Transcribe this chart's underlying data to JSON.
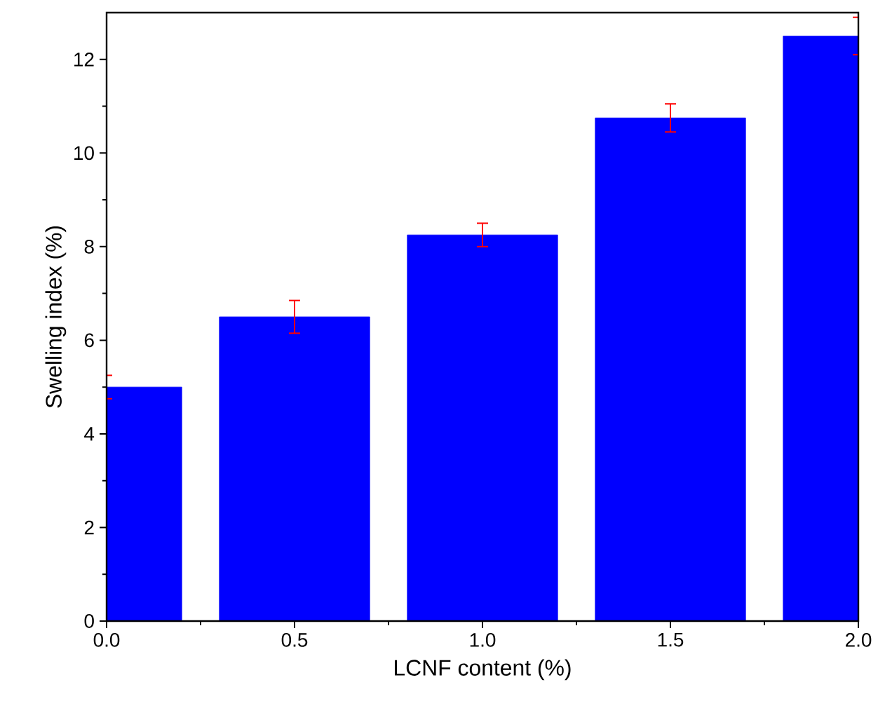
{
  "chart_data": {
    "type": "bar",
    "xlabel": "LCNF content (%)",
    "ylabel": "Swelling index (%)",
    "x": [
      0,
      0.5,
      1.0,
      1.5,
      2.0
    ],
    "values": [
      5.0,
      6.5,
      8.25,
      10.75,
      12.5
    ],
    "errors": [
      0.25,
      0.35,
      0.25,
      0.3,
      0.4
    ],
    "color": "#0000ff",
    "xlim": [
      0,
      2
    ],
    "xticks": [
      {
        "value": 0,
        "label": "0.0"
      },
      {
        "value": 0.5,
        "label": "0.5"
      },
      {
        "value": 1.0,
        "label": "1.0"
      },
      {
        "value": 1.5,
        "label": "1.5"
      },
      {
        "value": 2.0,
        "label": "2.0"
      }
    ],
    "ylim": [
      0,
      13
    ],
    "yticks": [
      0,
      2,
      4,
      6,
      8,
      10,
      12
    ]
  }
}
